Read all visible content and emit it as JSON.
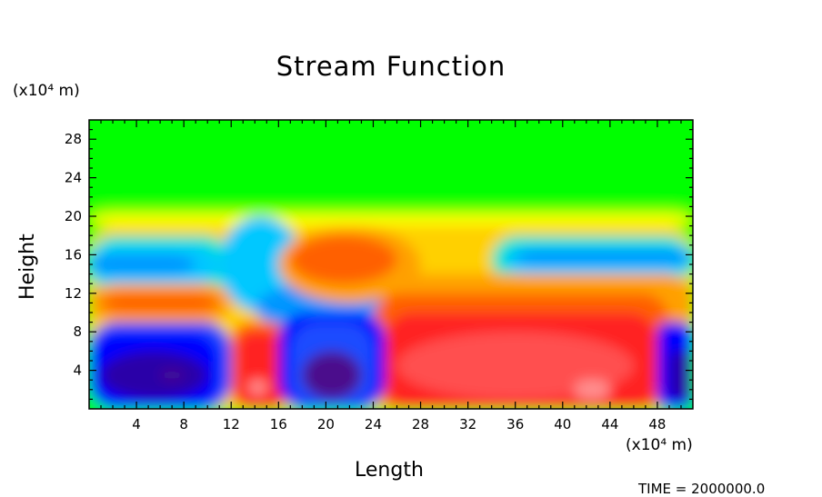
{
  "chart_data": {
    "type": "heatmap",
    "title": "Stream Function",
    "xlabel": "Length",
    "ylabel": "Height",
    "x_unit": "(x10⁴ m)",
    "y_unit": "(x10⁴ m)",
    "xlim": [
      0,
      51
    ],
    "ylim": [
      0,
      30
    ],
    "x_ticks": [
      4,
      8,
      12,
      16,
      20,
      24,
      28,
      32,
      36,
      40,
      44,
      48
    ],
    "y_ticks": [
      4,
      8,
      12,
      16,
      20,
      24,
      28
    ],
    "colormap": [
      "#4b0c8c",
      "#2a00a8",
      "#0000ff",
      "#1a4cff",
      "#0096ff",
      "#00c8ff",
      "#00e6c8",
      "#00ff00",
      "#7fff00",
      "#ffff00",
      "#ffd000",
      "#ffa000",
      "#ff6000",
      "#ff2020",
      "#ff5050",
      "#ff9090"
    ],
    "regions": [
      {
        "x": [
          0,
          51
        ],
        "y": [
          0,
          30
        ],
        "level": 7
      },
      {
        "x": [
          0,
          51
        ],
        "y": [
          20.2,
          21
        ],
        "level": 8
      },
      {
        "x": [
          0,
          51
        ],
        "y": [
          19,
          20.2
        ],
        "level": 9
      },
      {
        "x": [
          0,
          51
        ],
        "y": [
          0,
          19
        ],
        "level": 10
      },
      {
        "x": [
          0,
          12
        ],
        "y": [
          12,
          18
        ],
        "level": 6
      },
      {
        "x": [
          0,
          11
        ],
        "y": [
          13,
          17
        ],
        "level": 5
      },
      {
        "x": [
          0,
          9
        ],
        "y": [
          14,
          16
        ],
        "level": 4
      },
      {
        "x": [
          34,
          51
        ],
        "y": [
          13,
          18
        ],
        "level": 6
      },
      {
        "x": [
          35,
          51
        ],
        "y": [
          14,
          17
        ],
        "level": 5
      },
      {
        "x": [
          36,
          51
        ],
        "y": [
          15,
          16.5
        ],
        "level": 4
      },
      {
        "x": [
          11,
          18
        ],
        "y": [
          10,
          20
        ],
        "level": 5
      },
      {
        "x": [
          14,
          25
        ],
        "y": [
          8,
          13
        ],
        "level": 4
      },
      {
        "x": [
          0,
          12
        ],
        "y": [
          9,
          13
        ],
        "level": 11
      },
      {
        "x": [
          1,
          11
        ],
        "y": [
          10,
          12
        ],
        "level": 12
      },
      {
        "x": [
          16,
          28
        ],
        "y": [
          11,
          19
        ],
        "level": 11
      },
      {
        "x": [
          17,
          26
        ],
        "y": [
          13,
          18
        ],
        "level": 12
      },
      {
        "x": [
          26,
          51
        ],
        "y": [
          8,
          14
        ],
        "level": 11
      },
      {
        "x": [
          24,
          49
        ],
        "y": [
          0,
          12
        ],
        "level": 12
      },
      {
        "x": [
          25,
          48
        ],
        "y": [
          0,
          10
        ],
        "level": 13
      },
      {
        "x": [
          26,
          46
        ],
        "y": [
          1,
          8
        ],
        "level": 14
      },
      {
        "x": [
          41,
          44
        ],
        "y": [
          1,
          3
        ],
        "level": 15
      },
      {
        "x": [
          12,
          17
        ],
        "y": [
          0,
          9
        ],
        "level": 12
      },
      {
        "x": [
          12.5,
          16.5
        ],
        "y": [
          0,
          8
        ],
        "level": 13
      },
      {
        "x": [
          13.5,
          15
        ],
        "y": [
          1.5,
          3
        ],
        "level": 15
      },
      {
        "x": [
          0,
          12
        ],
        "y": [
          0,
          9
        ],
        "level": 3
      },
      {
        "x": [
          0,
          11
        ],
        "y": [
          0,
          8
        ],
        "level": 2
      },
      {
        "x": [
          1,
          10
        ],
        "y": [
          1,
          6
        ],
        "level": 1
      },
      {
        "x": [
          6,
          8
        ],
        "y": [
          3,
          4
        ],
        "level": 0
      },
      {
        "x": [
          16,
          25
        ],
        "y": [
          0,
          10
        ],
        "level": 2
      },
      {
        "x": [
          17,
          24
        ],
        "y": [
          0,
          9
        ],
        "level": 3
      },
      {
        "x": [
          18,
          23
        ],
        "y": [
          1,
          6
        ],
        "level": 0
      },
      {
        "x": [
          48,
          51
        ],
        "y": [
          0,
          9
        ],
        "level": 2
      },
      {
        "x": [
          49,
          51
        ],
        "y": [
          1,
          6
        ],
        "level": 1
      }
    ]
  },
  "footer": {
    "time_label": "TIME =",
    "time_value": "2000000.0"
  }
}
